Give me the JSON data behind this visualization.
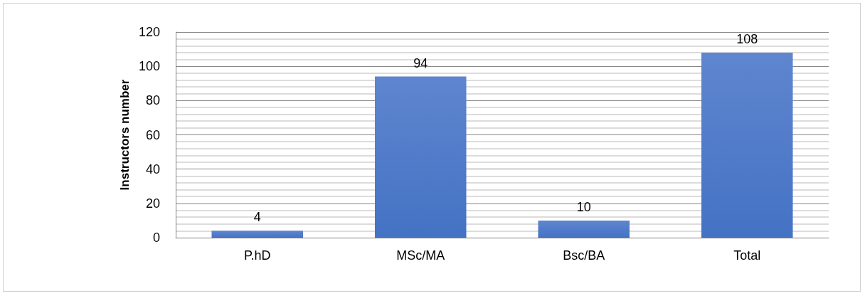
{
  "chart_data": {
    "type": "bar",
    "ylabel": "Instructors number",
    "categories": [
      "P.hD",
      "MSc/MA",
      "Bsc/BA",
      "Total"
    ],
    "values": [
      4,
      94,
      10,
      108
    ],
    "color": "#4472c4",
    "ylim": [
      0,
      120
    ],
    "yticks": [
      0,
      20,
      40,
      60,
      80,
      100,
      120
    ],
    "grid": true,
    "data_labels": true
  }
}
